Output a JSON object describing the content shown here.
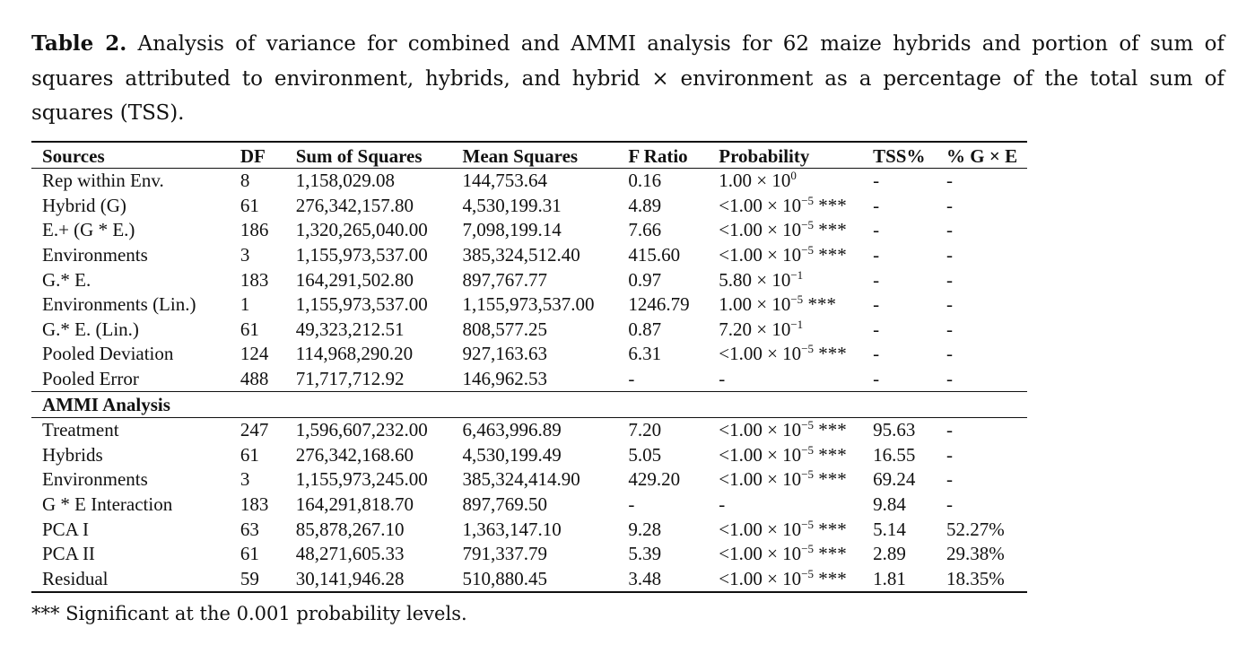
{
  "caption": {
    "label": "Table 2.",
    "text": " Analysis of variance for combined and AMMI analysis for 62 maize hybrids and portion of sum of squares attributed to environment, hybrids, and hybrid × environment as a percentage of the total sum of squares (TSS)."
  },
  "table": {
    "headers": [
      "Sources",
      "DF",
      "Sum of Squares",
      "Mean Squares",
      "F Ratio",
      "Probability",
      "TSS%",
      "% G × E"
    ],
    "combined_rows": [
      {
        "source": "Rep within Env.",
        "df": "8",
        "ss": "1,158,029.08",
        "ms": "144,753.64",
        "f": "0.16",
        "p_base": "1.00 × 10",
        "p_exp": "0",
        "p_sig": "",
        "tss": "-",
        "gxe": "-"
      },
      {
        "source": "Hybrid (G)",
        "df": "61",
        "ss": "276,342,157.80",
        "ms": "4,530,199.31",
        "f": "4.89",
        "p_base": "<1.00 × 10",
        "p_exp": "−5",
        "p_sig": " ***",
        "tss": "-",
        "gxe": "-"
      },
      {
        "source": "E.+ (G * E.)",
        "df": "186",
        "ss": "1,320,265,040.00",
        "ms": "7,098,199.14",
        "f": "7.66",
        "p_base": "<1.00 × 10",
        "p_exp": "−5",
        "p_sig": " ***",
        "tss": "-",
        "gxe": "-"
      },
      {
        "source": "Environments",
        "df": "3",
        "ss": "1,155,973,537.00",
        "ms": "385,324,512.40",
        "f": "415.60",
        "p_base": "<1.00 × 10",
        "p_exp": "−5",
        "p_sig": " ***",
        "tss": "-",
        "gxe": "-"
      },
      {
        "source": "G.* E.",
        "df": "183",
        "ss": "164,291,502.80",
        "ms": "897,767.77",
        "f": "0.97",
        "p_base": "5.80 × 10",
        "p_exp": "−1",
        "p_sig": "",
        "tss": "-",
        "gxe": "-"
      },
      {
        "source": "Environments (Lin.)",
        "df": "1",
        "ss": "1,155,973,537.00",
        "ms": "1,155,973,537.00",
        "f": "1246.79",
        "p_base": "1.00 × 10",
        "p_exp": "−5",
        "p_sig": " ***",
        "tss": "-",
        "gxe": "-"
      },
      {
        "source": "G.* E. (Lin.)",
        "df": "61",
        "ss": "49,323,212.51",
        "ms": "808,577.25",
        "f": "0.87",
        "p_base": "7.20 × 10",
        "p_exp": "−1",
        "p_sig": "",
        "tss": "-",
        "gxe": "-"
      },
      {
        "source": "Pooled Deviation",
        "df": "124",
        "ss": "114,968,290.20",
        "ms": "927,163.63",
        "f": "6.31",
        "p_base": "<1.00 × 10",
        "p_exp": "−5",
        "p_sig": " ***",
        "tss": "-",
        "gxe": "-"
      },
      {
        "source": "Pooled Error",
        "df": "488",
        "ss": "71,717,712.92",
        "ms": "146,962.53",
        "f": "-",
        "p_base": "-",
        "p_exp": "",
        "p_sig": "",
        "tss": "-",
        "gxe": "-"
      }
    ],
    "section_title": "AMMI Analysis",
    "ammi_rows": [
      {
        "source": "Treatment",
        "df": "247",
        "ss": "1,596,607,232.00",
        "ms": "6,463,996.89",
        "f": "7.20",
        "p_base": "<1.00 × 10",
        "p_exp": "−5",
        "p_sig": " ***",
        "tss": "95.63",
        "gxe": "-"
      },
      {
        "source": "Hybrids",
        "df": "61",
        "ss": "276,342,168.60",
        "ms": "4,530,199.49",
        "f": "5.05",
        "p_base": "<1.00 × 10",
        "p_exp": "−5",
        "p_sig": " ***",
        "tss": "16.55",
        "gxe": "-"
      },
      {
        "source": "Environments",
        "df": "3",
        "ss": "1,155,973,245.00",
        "ms": "385,324,414.90",
        "f": "429.20",
        "p_base": "<1.00 × 10",
        "p_exp": "−5",
        "p_sig": " ***",
        "tss": "69.24",
        "gxe": "-"
      },
      {
        "source": "G * E Interaction",
        "df": "183",
        "ss": "164,291,818.70",
        "ms": "897,769.50",
        "f": "-",
        "p_base": "-",
        "p_exp": "",
        "p_sig": "",
        "tss": "9.84",
        "gxe": "-"
      },
      {
        "source": "PCA I",
        "df": "63",
        "ss": "85,878,267.10",
        "ms": "1,363,147.10",
        "f": "9.28",
        "p_base": "<1.00 × 10",
        "p_exp": "−5",
        "p_sig": " ***",
        "tss": "5.14",
        "gxe": "52.27%"
      },
      {
        "source": "PCA II",
        "df": "61",
        "ss": "48,271,605.33",
        "ms": "791,337.79",
        "f": "5.39",
        "p_base": "<1.00 × 10",
        "p_exp": "−5",
        "p_sig": " ***",
        "tss": "2.89",
        "gxe": "29.38%"
      },
      {
        "source": "Residual",
        "df": "59",
        "ss": "30,141,946.28",
        "ms": "510,880.45",
        "f": "3.48",
        "p_base": "<1.00 × 10",
        "p_exp": "−5",
        "p_sig": " ***",
        "tss": "1.81",
        "gxe": "18.35%"
      }
    ]
  },
  "footnote": "*** Significant at the 0.001 probability levels."
}
